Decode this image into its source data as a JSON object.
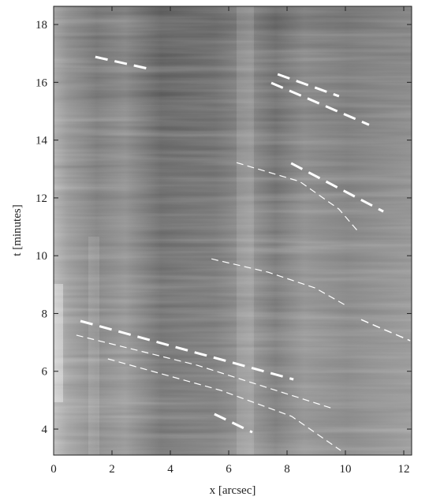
{
  "chart_data": {
    "type": "image-track",
    "x_label": "x [arcsec]",
    "y_label": "t [minutes]",
    "xlim": [
      0,
      12.27
    ],
    "ylim": [
      3.1,
      18.63
    ],
    "xticks": [
      0,
      2,
      4,
      6,
      8,
      10,
      12
    ],
    "yticks": [
      4,
      6,
      8,
      10,
      12,
      14,
      16,
      18
    ],
    "color": "#ffffff",
    "series": [
      {
        "width": 3,
        "x": [
          1.43,
          3.38
        ],
        "values": [
          16.88,
          16.44
        ]
      },
      {
        "width": 3,
        "x": [
          7.68,
          9.78
        ],
        "values": [
          16.28,
          15.52
        ]
      },
      {
        "width": 3,
        "x": [
          7.46,
          10.81
        ],
        "values": [
          15.98,
          14.53
        ]
      },
      {
        "width": 3,
        "x": [
          8.14,
          11.3
        ],
        "values": [
          13.2,
          11.53
        ]
      },
      {
        "width": 1.2,
        "x": [
          6.27,
          8.43,
          9.78,
          10.4
        ],
        "values": [
          13.22,
          12.57,
          11.61,
          10.88
        ]
      },
      {
        "width": 1.2,
        "x": [
          5.41,
          7.35,
          8.97,
          10.05
        ],
        "values": [
          9.89,
          9.43,
          8.88,
          8.26
        ]
      },
      {
        "width": 1.5,
        "x": [
          10.54,
          11.08,
          12.22
        ],
        "values": [
          7.79,
          7.55,
          7.06
        ]
      },
      {
        "width": 3,
        "x": [
          0.92,
          8.22
        ],
        "values": [
          7.74,
          5.72
        ]
      },
      {
        "width": 1.2,
        "x": [
          0.78,
          4.92,
          9.57
        ],
        "values": [
          7.25,
          6.21,
          4.71
        ]
      },
      {
        "width": 1.2,
        "x": [
          1.86,
          5.73,
          8.16,
          9.84
        ],
        "values": [
          6.43,
          5.34,
          4.44,
          3.26
        ]
      },
      {
        "width": 3,
        "x": [
          5.51,
          6.81
        ],
        "values": [
          4.52,
          3.89
        ]
      }
    ]
  }
}
